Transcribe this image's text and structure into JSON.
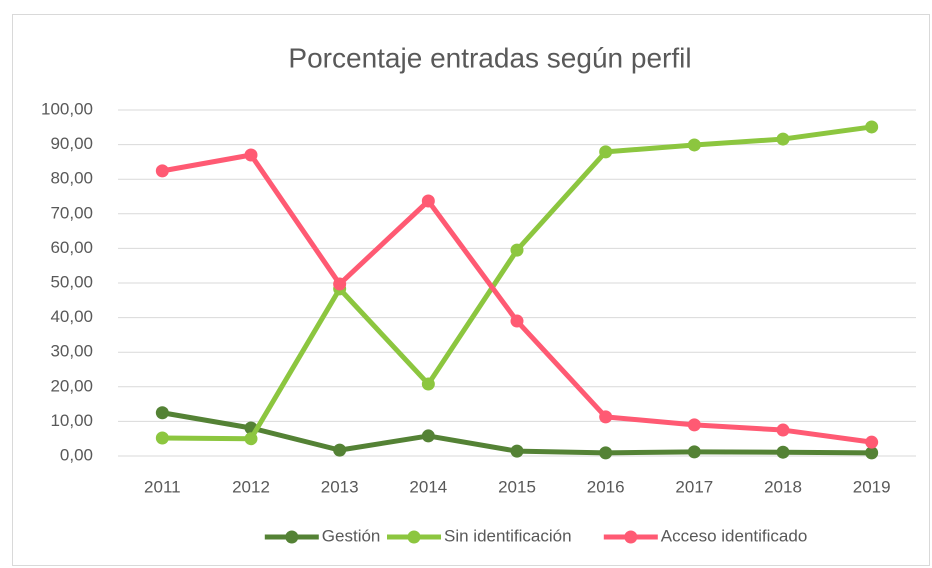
{
  "chart_data": {
    "type": "line",
    "title": "Porcentaje entradas según perfil",
    "categories": [
      "2011",
      "2012",
      "2013",
      "2014",
      "2015",
      "2016",
      "2017",
      "2018",
      "2019"
    ],
    "series": [
      {
        "name": "Gestión",
        "color": "#548235",
        "values": [
          12.5,
          8.1,
          1.7,
          5.8,
          1.4,
          0.9,
          1.2,
          1.1,
          0.9
        ]
      },
      {
        "name": "Sin identificación",
        "color": "#8cc63f",
        "values": [
          5.2,
          5.0,
          48.3,
          20.8,
          59.5,
          87.9,
          89.9,
          91.6,
          95.1
        ]
      },
      {
        "name": "Acceso identificado",
        "color": "#ff5a73",
        "values": [
          82.4,
          87.0,
          49.7,
          73.7,
          39.0,
          11.3,
          9.0,
          7.5,
          4.0
        ]
      }
    ],
    "ylim": [
      0,
      100
    ],
    "yticks": [
      {
        "value": 0,
        "label": "0,00"
      },
      {
        "value": 10,
        "label": "10,00"
      },
      {
        "value": 20,
        "label": "20,00"
      },
      {
        "value": 30,
        "label": "30,00"
      },
      {
        "value": 40,
        "label": "40,00"
      },
      {
        "value": 50,
        "label": "50,00"
      },
      {
        "value": 60,
        "label": "60,00"
      },
      {
        "value": 70,
        "label": "70,00"
      },
      {
        "value": 80,
        "label": "80,00"
      },
      {
        "value": 90,
        "label": "90,00"
      },
      {
        "value": 100,
        "label": "100,00"
      }
    ],
    "grid": true,
    "legend": "bottom"
  }
}
